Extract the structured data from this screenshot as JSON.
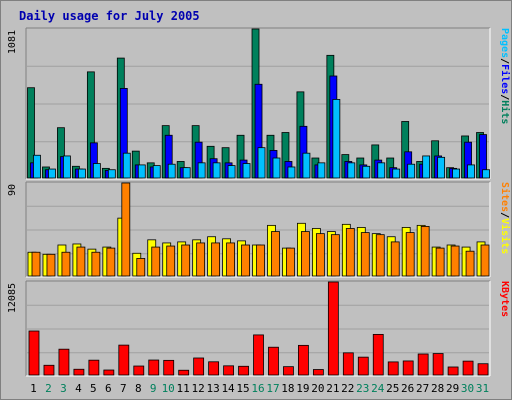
{
  "chart_data": [
    {
      "type": "bar",
      "title": "Daily usage for July 2005",
      "max_label": "1081",
      "ylim": [
        0,
        1081
      ],
      "categories": [
        "1",
        "2",
        "3",
        "4",
        "5",
        "6",
        "7",
        "8",
        "9",
        "10",
        "11",
        "12",
        "13",
        "14",
        "15",
        "16",
        "17",
        "18",
        "19",
        "20",
        "21",
        "22",
        "23",
        "24",
        "25",
        "26",
        "27",
        "28",
        "29",
        "30",
        "31"
      ],
      "weekend_days": [
        "2",
        "3",
        "9",
        "10",
        "16",
        "17",
        "23",
        "24",
        "30",
        "31"
      ],
      "legend": [
        {
          "text": "Pages",
          "color": "#00c0ff"
        },
        {
          "text": "Files",
          "color": "#0000ff"
        },
        {
          "text": "Hits",
          "color": "#00805c"
        }
      ],
      "separator": "/",
      "series": [
        {
          "name": "Hits",
          "color": "#00805c",
          "values": [
            655,
            80,
            365,
            85,
            770,
            70,
            870,
            195,
            110,
            380,
            120,
            380,
            230,
            220,
            310,
            1081,
            310,
            330,
            625,
            145,
            890,
            170,
            145,
            240,
            145,
            410,
            120,
            270,
            75,
            305,
            330
          ]
        },
        {
          "name": "Files",
          "color": "#0000ff",
          "values": [
            110,
            60,
            155,
            65,
            255,
            55,
            650,
            95,
            80,
            310,
            75,
            260,
            140,
            110,
            130,
            680,
            200,
            120,
            375,
            95,
            740,
            120,
            95,
            130,
            75,
            190,
            100,
            160,
            70,
            260,
            315
          ]
        },
        {
          "name": "Pages",
          "color": "#00c0ff",
          "values": [
            165,
            65,
            160,
            65,
            105,
            60,
            180,
            95,
            90,
            100,
            75,
            110,
            110,
            90,
            105,
            220,
            145,
            80,
            180,
            110,
            570,
            110,
            85,
            110,
            65,
            100,
            160,
            150,
            65,
            95,
            60
          ]
        }
      ]
    },
    {
      "type": "bar",
      "max_label": "90",
      "ylim": [
        0,
        90
      ],
      "legend": [
        {
          "text": "Sites",
          "color": "#ff8000"
        },
        {
          "text": "Visits",
          "color": "#ffff00"
        }
      ],
      "separator": "/",
      "series": [
        {
          "name": "Visits",
          "color": "#ffff00",
          "values": [
            23,
            21,
            30,
            31,
            26,
            28,
            56,
            22,
            35,
            32,
            33,
            35,
            38,
            36,
            34,
            30,
            49,
            27,
            51,
            46,
            43,
            50,
            47,
            41,
            38,
            47,
            49,
            28,
            30,
            28,
            33
          ]
        },
        {
          "name": "Sites",
          "color": "#ff8000",
          "values": [
            23,
            21,
            23,
            28,
            23,
            27,
            90,
            17,
            28,
            29,
            30,
            32,
            32,
            32,
            30,
            30,
            43,
            27,
            43,
            41,
            40,
            46,
            42,
            40,
            33,
            42,
            48,
            27,
            29,
            24,
            30
          ]
        }
      ]
    },
    {
      "type": "bar",
      "max_label": "12085",
      "ylim": [
        0,
        12085
      ],
      "legend": [
        {
          "text": "KBytes",
          "color": "#ff0000"
        }
      ],
      "separator": "",
      "series": [
        {
          "name": "KBytes",
          "color": "#ff0000",
          "values": [
            5715,
            1264,
            3355,
            747,
            1927,
            647,
            3884,
            1166,
            1945,
            1904,
            619,
            2210,
            1716,
            1193,
            1134,
            5209,
            3611,
            1085,
            3852,
            712,
            12085,
            2880,
            2321,
            5277,
            1702,
            1826,
            2729,
            2788,
            1041,
            1804,
            1466
          ]
        }
      ]
    }
  ]
}
